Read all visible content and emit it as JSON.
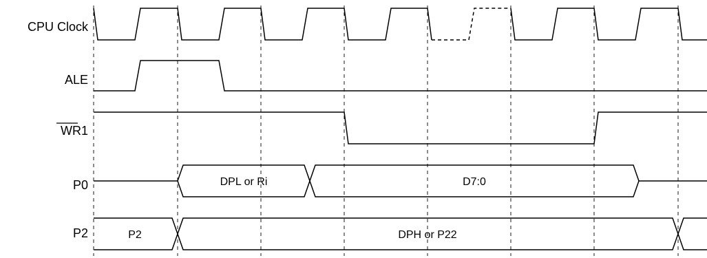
{
  "signals": {
    "cpu_clock": "CPU Clock",
    "ale": "ALE",
    "wr_prefix": "WR",
    "wr_suffix": "1",
    "p0": "P0",
    "p2": "P2"
  },
  "bus": {
    "p0_addr": "DPL or Ri",
    "p0_data": "D7:0",
    "p2_prev": "P2",
    "p2_addr": "DPH or P22"
  }
}
